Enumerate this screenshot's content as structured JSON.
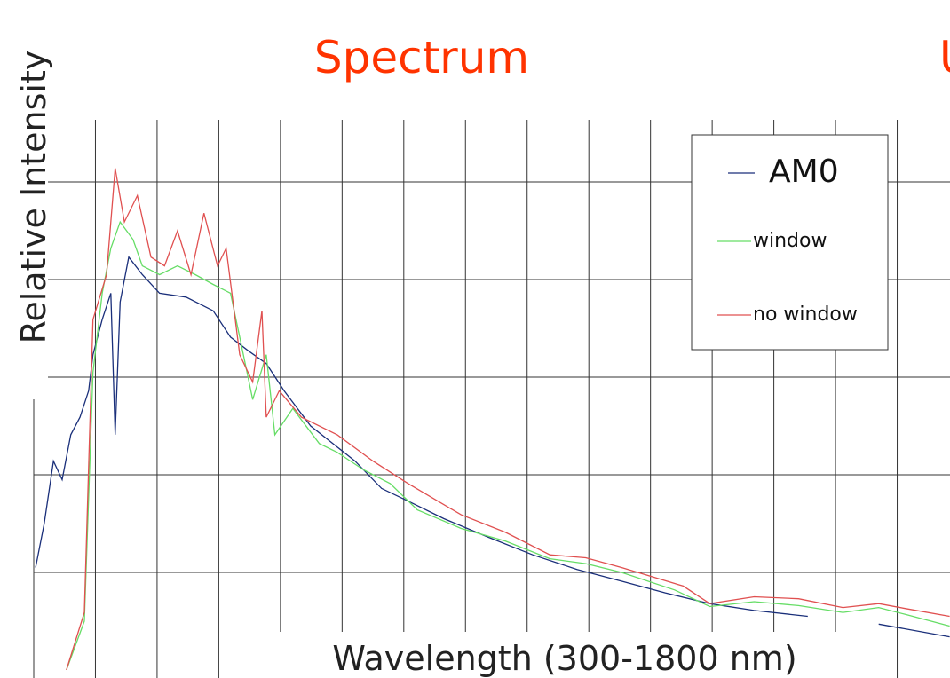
{
  "chart_data": {
    "type": "line",
    "title": "Spectrum",
    "title_fragment": "U",
    "ylabel": "Relative Intensity",
    "xlabel": "Wavelength (300-1800 nm)",
    "xlim": [
      300,
      1800
    ],
    "ylim": [
      0,
      6
    ],
    "xticks": [
      300,
      400,
      500,
      600,
      700,
      800,
      900,
      1000,
      1100,
      1200,
      1300,
      1400,
      1500,
      1600,
      1700
    ],
    "yticks": [
      1,
      2,
      3,
      4,
      5
    ],
    "grid": true,
    "legend": "upper right",
    "series": [
      {
        "name": "AM0",
        "color": "#1a2f7a",
        "x": [
          303,
          317,
          332,
          346,
          360,
          375,
          389,
          396,
          411,
          425,
          432,
          440,
          454,
          476,
          504,
          547,
          591,
          619,
          648,
          677,
          706,
          749,
          821,
          864,
          907,
          965,
          1037,
          1109,
          1181,
          1253,
          1324,
          1396,
          1468,
          1555,
          1612,
          1670,
          1785
        ],
        "values": [
          1.05,
          1.5,
          2.14,
          1.95,
          2.41,
          2.59,
          2.86,
          3.23,
          3.59,
          3.86,
          2.41,
          3.77,
          4.23,
          4.05,
          3.86,
          3.82,
          3.68,
          3.41,
          3.27,
          3.14,
          2.86,
          2.5,
          2.14,
          1.86,
          1.73,
          1.55,
          1.36,
          1.18,
          1.03,
          0.91,
          0.79,
          0.68,
          0.61,
          0.55,
          null,
          0.47,
          0.34
        ]
      },
      {
        "name": "window",
        "color": "#66dd66",
        "x": [
          353,
          382,
          396,
          411,
          425,
          440,
          461,
          476,
          504,
          533,
          562,
          591,
          619,
          634,
          655,
          677,
          691,
          720,
          763,
          792,
          835,
          878,
          922,
          993,
          1065,
          1137,
          1195,
          1253,
          1339,
          1396,
          1468,
          1540,
          1612,
          1670,
          1713,
          1785
        ],
        "values": [
          0,
          0.5,
          3.05,
          3.86,
          4.32,
          4.59,
          4.41,
          4.14,
          4.05,
          4.14,
          4.05,
          3.95,
          3.86,
          3.41,
          2.77,
          3.23,
          2.41,
          2.68,
          2.32,
          2.23,
          2.05,
          1.91,
          1.64,
          1.45,
          1.32,
          1.14,
          1.09,
          1.0,
          0.82,
          0.65,
          0.7,
          0.66,
          0.59,
          0.64,
          0.57,
          0.45
        ]
      },
      {
        "name": "no window",
        "color": "#e05050",
        "x": [
          353,
          382,
          396,
          418,
          432,
          447,
          468,
          490,
          512,
          533,
          555,
          576,
          598,
          612,
          634,
          655,
          670,
          677,
          698,
          734,
          792,
          850,
          907,
          993,
          1065,
          1137,
          1195,
          1253,
          1353,
          1396,
          1468,
          1540,
          1612,
          1670,
          1713,
          1785
        ],
        "values": [
          0,
          0.59,
          3.59,
          4.05,
          5.14,
          4.59,
          4.86,
          4.23,
          4.14,
          4.5,
          4.05,
          4.68,
          4.14,
          4.32,
          3.23,
          2.95,
          3.68,
          2.59,
          2.86,
          2.59,
          2.41,
          2.14,
          1.91,
          1.59,
          1.41,
          1.18,
          1.15,
          1.05,
          0.86,
          0.68,
          0.75,
          0.73,
          0.64,
          0.68,
          0.63,
          0.55
        ]
      }
    ]
  }
}
